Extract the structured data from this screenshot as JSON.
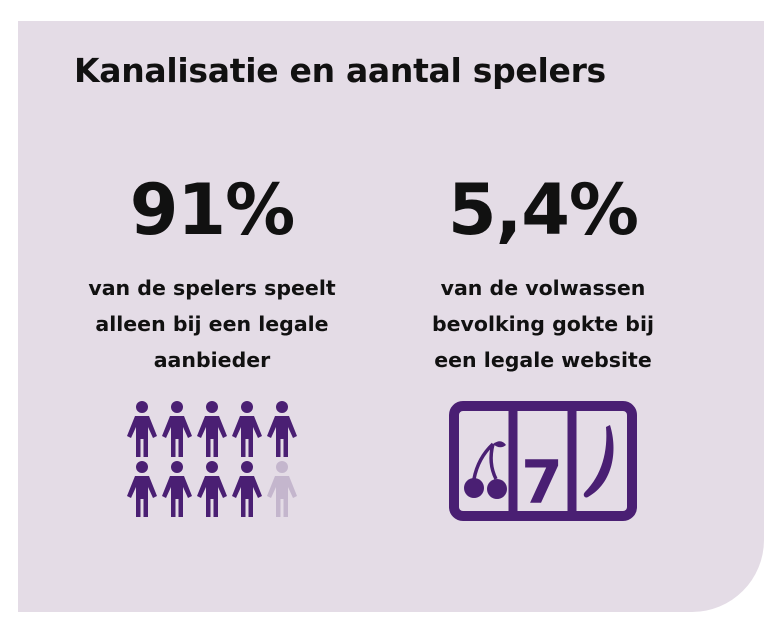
{
  "title": "Kanalisatie en aantal spelers",
  "colors": {
    "background": "#e4dce6",
    "accent": "#4a1f73",
    "muted": "#c4b6cd",
    "text": "#111111"
  },
  "stats": [
    {
      "value": "91%",
      "description": "van de spelers speelt\nalleen bij een legale\naanbieder",
      "icon": "people-icon-grid",
      "figure": {
        "filled": 9,
        "total": 10
      }
    },
    {
      "value": "5,4%",
      "description": "van de volwassen\nbevolking gokte bij\neen legale website",
      "icon": "slot-machine-icon"
    }
  ],
  "slot": {
    "middle_symbol": "7"
  }
}
